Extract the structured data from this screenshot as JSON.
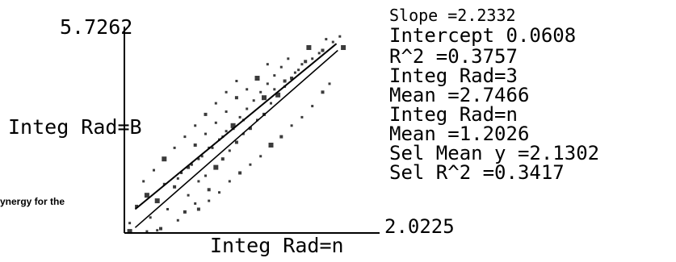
{
  "chart_data": {
    "type": "scatter",
    "title": "",
    "xlabel": "Integ Rad=n",
    "ylabel": "Integ Rad=B",
    "xlim": [
      2.0225,
      5.7262
    ],
    "ylim": [
      2.0225,
      5.7262
    ],
    "x_tick_labels": [
      "2.0225"
    ],
    "y_tick_labels": [
      "5.7262"
    ],
    "grid": false,
    "legend": "none",
    "stats": [
      "Slope =2.2332",
      "Intercept 0.0608",
      "R^2 =0.3757",
      "Integ Rad=3",
      "Mean =2.7466",
      "Integ Rad=n",
      "Mean =1.2026",
      "Sel Mean y =2.1302",
      "Sel R^2 =0.3417"
    ],
    "series": [
      {
        "values": [
          [
            2.1,
            2.05
          ],
          [
            2.35,
            2.05
          ],
          [
            2.5,
            2.07
          ],
          [
            2.1,
            2.2
          ],
          [
            2.55,
            2.1
          ],
          [
            2.4,
            2.3
          ],
          [
            2.8,
            2.25
          ],
          [
            2.65,
            2.45
          ],
          [
            2.9,
            2.4
          ],
          [
            2.5,
            2.6
          ],
          [
            2.95,
            2.7
          ],
          [
            3.05,
            2.55
          ],
          [
            2.75,
            2.85
          ],
          [
            3.1,
            2.95
          ],
          [
            2.85,
            3.1
          ],
          [
            3.2,
            3.05
          ],
          [
            3.25,
            2.8
          ],
          [
            3.0,
            3.25
          ],
          [
            3.35,
            3.2
          ],
          [
            3.15,
            3.4
          ],
          [
            3.45,
            3.35
          ],
          [
            3.3,
            3.55
          ],
          [
            3.55,
            3.5
          ],
          [
            3.4,
            3.7
          ],
          [
            3.65,
            3.65
          ],
          [
            3.5,
            3.85
          ],
          [
            3.75,
            3.8
          ],
          [
            3.6,
            3.95
          ],
          [
            3.85,
            3.9
          ],
          [
            3.7,
            4.1
          ],
          [
            3.95,
            4.05
          ],
          [
            3.8,
            4.25
          ],
          [
            4.05,
            4.15
          ],
          [
            3.9,
            4.4
          ],
          [
            4.15,
            4.35
          ],
          [
            4.0,
            4.55
          ],
          [
            4.25,
            4.5
          ],
          [
            4.1,
            4.7
          ],
          [
            4.35,
            4.65
          ],
          [
            4.2,
            4.85
          ],
          [
            4.45,
            4.8
          ],
          [
            4.3,
            5.0
          ],
          [
            4.55,
            4.95
          ],
          [
            4.4,
            5.15
          ],
          [
            4.65,
            5.1
          ],
          [
            4.7,
            5.35
          ],
          [
            4.85,
            5.25
          ],
          [
            4.95,
            5.5
          ],
          [
            3.05,
            3.6
          ],
          [
            3.2,
            3.8
          ],
          [
            3.35,
            4.0
          ],
          [
            3.5,
            4.2
          ],
          [
            3.65,
            4.45
          ],
          [
            3.8,
            4.6
          ],
          [
            3.95,
            4.8
          ],
          [
            4.1,
            5.05
          ],
          [
            3.1,
            2.45
          ],
          [
            3.25,
            2.6
          ],
          [
            3.4,
            2.75
          ],
          [
            3.55,
            2.95
          ],
          [
            3.7,
            3.1
          ],
          [
            3.85,
            3.25
          ],
          [
            4.0,
            3.4
          ],
          [
            4.15,
            3.6
          ],
          [
            4.3,
            3.75
          ],
          [
            4.45,
            3.95
          ],
          [
            4.6,
            4.1
          ],
          [
            4.75,
            4.3
          ],
          [
            4.9,
            4.55
          ],
          [
            5.0,
            4.7
          ],
          [
            2.3,
            2.95
          ],
          [
            2.45,
            3.15
          ],
          [
            2.6,
            3.35
          ],
          [
            2.75,
            3.55
          ],
          [
            2.9,
            3.75
          ],
          [
            3.05,
            3.95
          ],
          [
            3.2,
            4.15
          ],
          [
            3.35,
            4.35
          ],
          [
            3.5,
            4.55
          ],
          [
            3.65,
            4.75
          ],
          [
            2.2,
            2.5
          ],
          [
            2.35,
            2.7
          ],
          [
            2.6,
            2.9
          ],
          [
            2.8,
            3.0
          ],
          [
            2.95,
            3.2
          ],
          [
            3.1,
            3.35
          ],
          [
            3.25,
            3.55
          ],
          [
            3.45,
            3.75
          ],
          [
            3.6,
            3.9
          ],
          [
            3.75,
            4.05
          ],
          [
            4.05,
            4.45
          ],
          [
            4.2,
            4.6
          ],
          [
            4.35,
            4.75
          ],
          [
            4.5,
            4.9
          ],
          [
            4.6,
            5.05
          ],
          [
            4.75,
            5.15
          ],
          [
            4.9,
            5.3
          ],
          [
            5.05,
            5.45
          ],
          [
            5.15,
            5.55
          ],
          [
            5.2,
            5.35
          ]
        ]
      }
    ],
    "fit_lines": [
      {
        "name": "",
        "from": [
          2.18,
          2.45
        ],
        "to": [
          5.1,
          5.42
        ]
      },
      {
        "name": "",
        "from": [
          2.18,
          2.12
        ],
        "to": [
          5.12,
          5.3
        ]
      }
    ]
  },
  "caption_fragment": "ynergy for the"
}
